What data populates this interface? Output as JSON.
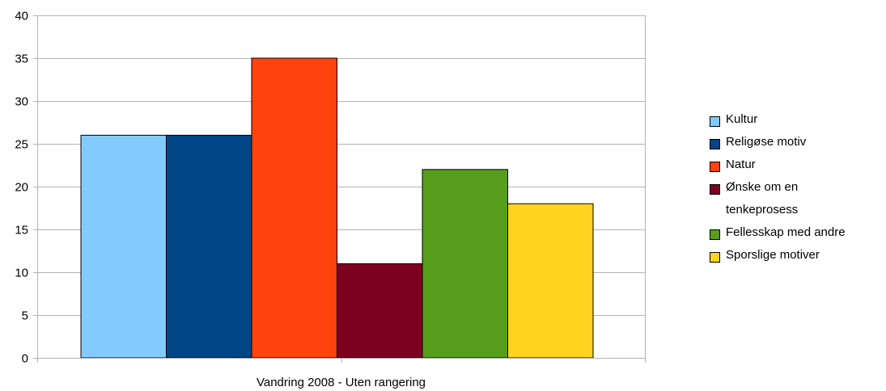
{
  "chart_data": {
    "type": "bar",
    "title": "",
    "xlabel": "",
    "ylabel": "",
    "categories": [
      "Vandring 2008 - Uten rangering"
    ],
    "ylim": [
      0,
      40
    ],
    "yticks": [
      0,
      5,
      10,
      15,
      20,
      25,
      30,
      35,
      40
    ],
    "grid": true,
    "legend_position": "right",
    "series": [
      {
        "name": "Kultur",
        "values": [
          26
        ],
        "color": "#83caff"
      },
      {
        "name": "Religøse motiv",
        "values": [
          26
        ],
        "color": "#004586"
      },
      {
        "name": "Natur",
        "values": [
          35
        ],
        "color": "#ff420e"
      },
      {
        "name": "Ønske om en tenkeprosess",
        "values": [
          11
        ],
        "color": "#7e0021"
      },
      {
        "name": "Fellesskap med andre",
        "values": [
          22
        ],
        "color": "#579d1c"
      },
      {
        "name": "Sporslige motiver",
        "values": [
          18
        ],
        "color": "#ffd320"
      }
    ]
  }
}
